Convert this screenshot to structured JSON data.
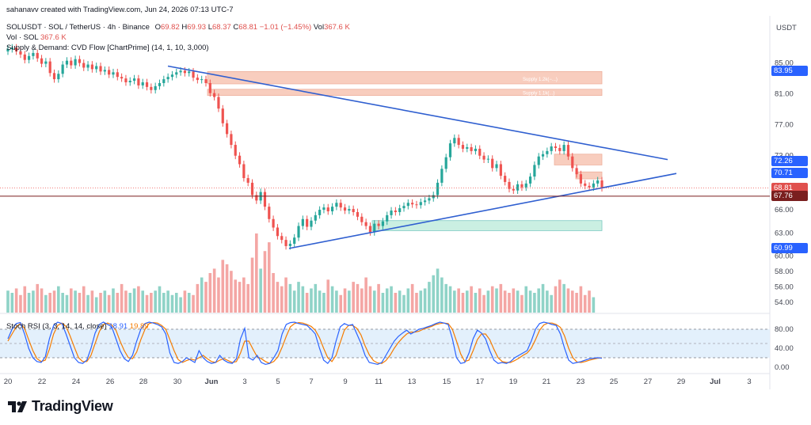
{
  "header": {
    "attribution": "sahanavv created with TradingView.com, Jun 24, 2026 07:13 UTC-7",
    "symbol_line": "SOLUSDT · SOL / TetherUS · 4h · Binance",
    "ohlc": {
      "o_label": "O",
      "o": "69.82",
      "h_label": "H",
      "h": "69.93",
      "l_label": "L",
      "l": "68.37",
      "c_label": "C",
      "c": "68.81",
      "change": "−1.01 (−1.45%)",
      "vol_label": "Vol",
      "vol": "367.6 K"
    },
    "vol_line_label": "Vol · SOL",
    "vol_line_value": "367.6 K",
    "indicator_line": "Supply & Demand: CVD Flow [ChartPrime] (14, 1, 10, 3,000)"
  },
  "price_axis": {
    "currency": "USDT",
    "ticks": [
      "85.00",
      "81.00",
      "77.00",
      "73.00",
      "66.00",
      "63.00",
      "60.00",
      "58.00",
      "56.00",
      "54.00"
    ],
    "badges": [
      {
        "value": "83.95",
        "color": "#2962ff"
      },
      {
        "value": "72.26",
        "color": "#2962ff"
      },
      {
        "value": "70.71",
        "color": "#2962ff"
      },
      {
        "value": "68.81",
        "color": "#e0504d"
      },
      {
        "value": "67.76",
        "color": "#7a1f1f"
      },
      {
        "value": "60.99",
        "color": "#2962ff"
      }
    ]
  },
  "stoch": {
    "label": "Stoch RSI (3, 3, 14, 14, close)",
    "k": "18.91",
    "d": "19.89",
    "k_color": "#2962ff",
    "d_color": "#f57c00",
    "ticks": [
      "80.00",
      "40.00",
      "0.00"
    ]
  },
  "time_axis": {
    "ticks": [
      "20",
      "22",
      "24",
      "26",
      "28",
      "30",
      "Jun",
      "3",
      "5",
      "7",
      "9",
      "11",
      "13",
      "15",
      "17",
      "19",
      "21",
      "23",
      "25",
      "27",
      "29",
      "Jul",
      "3"
    ]
  },
  "zones": {
    "supply_label_1": "Supply 1.2k(−...)",
    "supply_label_2": "Supply 1.1k(...)"
  },
  "brand": "TradingView",
  "chart_data": {
    "type": "candlestick",
    "title": "SOLUSDT · SOL / TetherUS · 4h · Binance",
    "xlabel": "",
    "ylabel": "USDT",
    "ylim": [
      53,
      87
    ],
    "x_range": [
      "May 20",
      "Jul 3"
    ],
    "close_series": [
      86.8,
      87.0,
      86.5,
      86.1,
      85.4,
      85.9,
      86.3,
      85.6,
      84.9,
      85.2,
      83.7,
      82.9,
      83.6,
      84.8,
      85.3,
      84.7,
      85.5,
      85.0,
      84.4,
      84.8,
      84.2,
      84.6,
      83.9,
      84.1,
      83.5,
      83.8,
      83.2,
      83.0,
      82.5,
      82.7,
      83.0,
      82.1,
      82.5,
      81.9,
      81.5,
      82.0,
      82.4,
      82.9,
      83.2,
      83.5,
      83.8,
      84.0,
      83.7,
      83.9,
      83.1,
      82.8,
      82.9,
      82.4,
      81.1,
      80.6,
      79.1,
      77.2,
      75.8,
      74.4,
      73.0,
      71.9,
      70.1,
      69.5,
      67.9,
      67.2,
      68.3,
      66.4,
      64.8,
      63.7,
      62.6,
      62.1,
      61.3,
      61.6,
      62.4,
      63.9,
      64.8,
      63.8,
      64.6,
      65.3,
      66.0,
      66.3,
      65.8,
      66.4,
      66.9,
      66.3,
      65.9,
      66.1,
      65.7,
      65.1,
      64.4,
      63.9,
      63.1,
      64.2,
      63.9,
      64.5,
      65.3,
      65.9,
      65.7,
      66.2,
      66.5,
      66.9,
      66.7,
      66.6,
      67.0,
      67.2,
      67.5,
      67.9,
      69.5,
      71.3,
      72.8,
      74.6,
      75.3,
      74.4,
      73.9,
      74.1,
      73.6,
      73.9,
      73.0,
      72.5,
      72.6,
      71.4,
      71.9,
      70.4,
      69.6,
      68.7,
      68.5,
      69.3,
      68.9,
      69.4,
      70.3,
      71.8,
      72.9,
      73.2,
      73.6,
      74.2,
      74.0,
      73.6,
      74.4,
      72.9,
      71.4,
      70.6,
      69.4,
      69.1,
      68.9,
      69.4,
      69.8,
      68.81
    ],
    "volume_series": [
      1.0,
      0.9,
      1.1,
      0.8,
      1.2,
      0.9,
      1.0,
      1.3,
      1.1,
      0.8,
      0.9,
      1.0,
      1.2,
      0.9,
      0.8,
      1.1,
      1.0,
      0.9,
      1.2,
      0.8,
      1.0,
      0.7,
      0.9,
      1.0,
      0.8,
      1.1,
      0.9,
      1.3,
      1.0,
      0.9,
      1.1,
      1.2,
      1.0,
      0.8,
      0.9,
      1.0,
      1.2,
      0.9,
      1.0,
      0.8,
      0.9,
      0.7,
      1.0,
      0.9,
      0.8,
      1.3,
      1.6,
      1.4,
      1.8,
      2.0,
      1.6,
      2.4,
      2.2,
      1.9,
      1.5,
      1.4,
      1.6,
      1.3,
      2.5,
      3.6,
      2.0,
      2.8,
      3.2,
      1.8,
      1.4,
      1.2,
      1.6,
      1.3,
      1.0,
      1.4,
      1.2,
      0.9,
      1.1,
      1.3,
      1.0,
      0.9,
      1.5,
      1.2,
      1.0,
      0.8,
      1.1,
      1.0,
      1.4,
      1.3,
      1.1,
      1.6,
      1.2,
      1.0,
      1.3,
      0.9,
      1.1,
      1.2,
      0.9,
      1.0,
      0.8,
      1.1,
      1.3,
      0.9,
      1.0,
      1.1,
      1.4,
      1.7,
      2.0,
      1.6,
      1.3,
      1.2,
      1.0,
      1.1,
      0.9,
      1.0,
      1.2,
      0.9,
      1.1,
      0.8,
      1.0,
      1.2,
      1.1,
      1.3,
      1.0,
      0.9,
      1.1,
      1.0,
      0.8,
      1.2,
      1.0,
      0.9,
      1.1,
      1.3,
      1.0,
      0.8,
      1.2,
      1.5,
      1.3,
      1.1,
      1.0,
      0.9,
      1.2,
      0.8,
      1.0,
      0.7
    ],
    "stoch_k": [
      60,
      80,
      92,
      94,
      70,
      40,
      20,
      12,
      10,
      22,
      60,
      88,
      95,
      92,
      70,
      45,
      20,
      10,
      8,
      15,
      40,
      72,
      90,
      95,
      90,
      85,
      60,
      35,
      18,
      12,
      25,
      55,
      80,
      92,
      95,
      93,
      90,
      85,
      70,
      30,
      10,
      8,
      12,
      20,
      15,
      10,
      35,
      20,
      12,
      8,
      10,
      25,
      15,
      10,
      8,
      18,
      60,
      82,
      20,
      15,
      25,
      10,
      6,
      8,
      20,
      35,
      70,
      90,
      94,
      95,
      92,
      90,
      88,
      80,
      70,
      40,
      15,
      8,
      20,
      55,
      85,
      92,
      88,
      90,
      70,
      50,
      25,
      10,
      8,
      6,
      10,
      25,
      40,
      55,
      65,
      72,
      78,
      70,
      75,
      80,
      82,
      85,
      88,
      92,
      95,
      93,
      90,
      60,
      20,
      8,
      10,
      30,
      60,
      78,
      72,
      60,
      35,
      15,
      8,
      10,
      8,
      12,
      20,
      25,
      30,
      35,
      55,
      80,
      92,
      95,
      93,
      90,
      88,
      70,
      40,
      15,
      8,
      10,
      12,
      15,
      18,
      19,
      20,
      18.91
    ],
    "stoch_d": [
      55,
      70,
      85,
      92,
      82,
      58,
      35,
      18,
      12,
      15,
      38,
      70,
      88,
      93,
      86,
      65,
      42,
      20,
      12,
      12,
      25,
      50,
      75,
      90,
      93,
      89,
      78,
      55,
      35,
      20,
      18,
      32,
      58,
      80,
      92,
      94,
      93,
      88,
      80,
      58,
      35,
      16,
      10,
      14,
      17,
      15,
      20,
      25,
      18,
      12,
      10,
      15,
      18,
      14,
      10,
      12,
      30,
      55,
      55,
      38,
      22,
      18,
      12,
      8,
      12,
      22,
      42,
      65,
      85,
      92,
      94,
      93,
      90,
      86,
      78,
      62,
      40,
      20,
      12,
      25,
      52,
      78,
      88,
      88,
      82,
      68,
      45,
      26,
      14,
      9,
      8,
      14,
      25,
      40,
      52,
      62,
      70,
      74,
      74,
      76,
      80,
      83,
      86,
      90,
      92,
      93,
      92,
      80,
      55,
      28,
      12,
      15,
      35,
      58,
      70,
      70,
      58,
      38,
      20,
      12,
      10,
      10,
      14,
      19,
      25,
      30,
      40,
      58,
      78,
      89,
      93,
      93,
      90,
      84,
      66,
      40,
      20,
      11,
      10,
      12,
      15,
      17,
      19,
      19.89
    ],
    "trendlines": [
      {
        "name": "upper",
        "from": [
          29,
          84.0
        ],
        "to": [
          28.5,
          72.3
        ]
      },
      {
        "name": "lower",
        "from": [
          5.5,
          61.0
        ],
        "to": [
          28.5,
          70.7
        ]
      }
    ],
    "supply_zones": [
      [
        82.3,
        83.9
      ],
      [
        80.8,
        81.6
      ],
      [
        71.8,
        73.2
      ],
      [
        70.0,
        70.9
      ]
    ],
    "demand_zones": [
      [
        63.3,
        64.6
      ]
    ],
    "horizontal_levels": [
      67.76
    ],
    "grid": false
  }
}
